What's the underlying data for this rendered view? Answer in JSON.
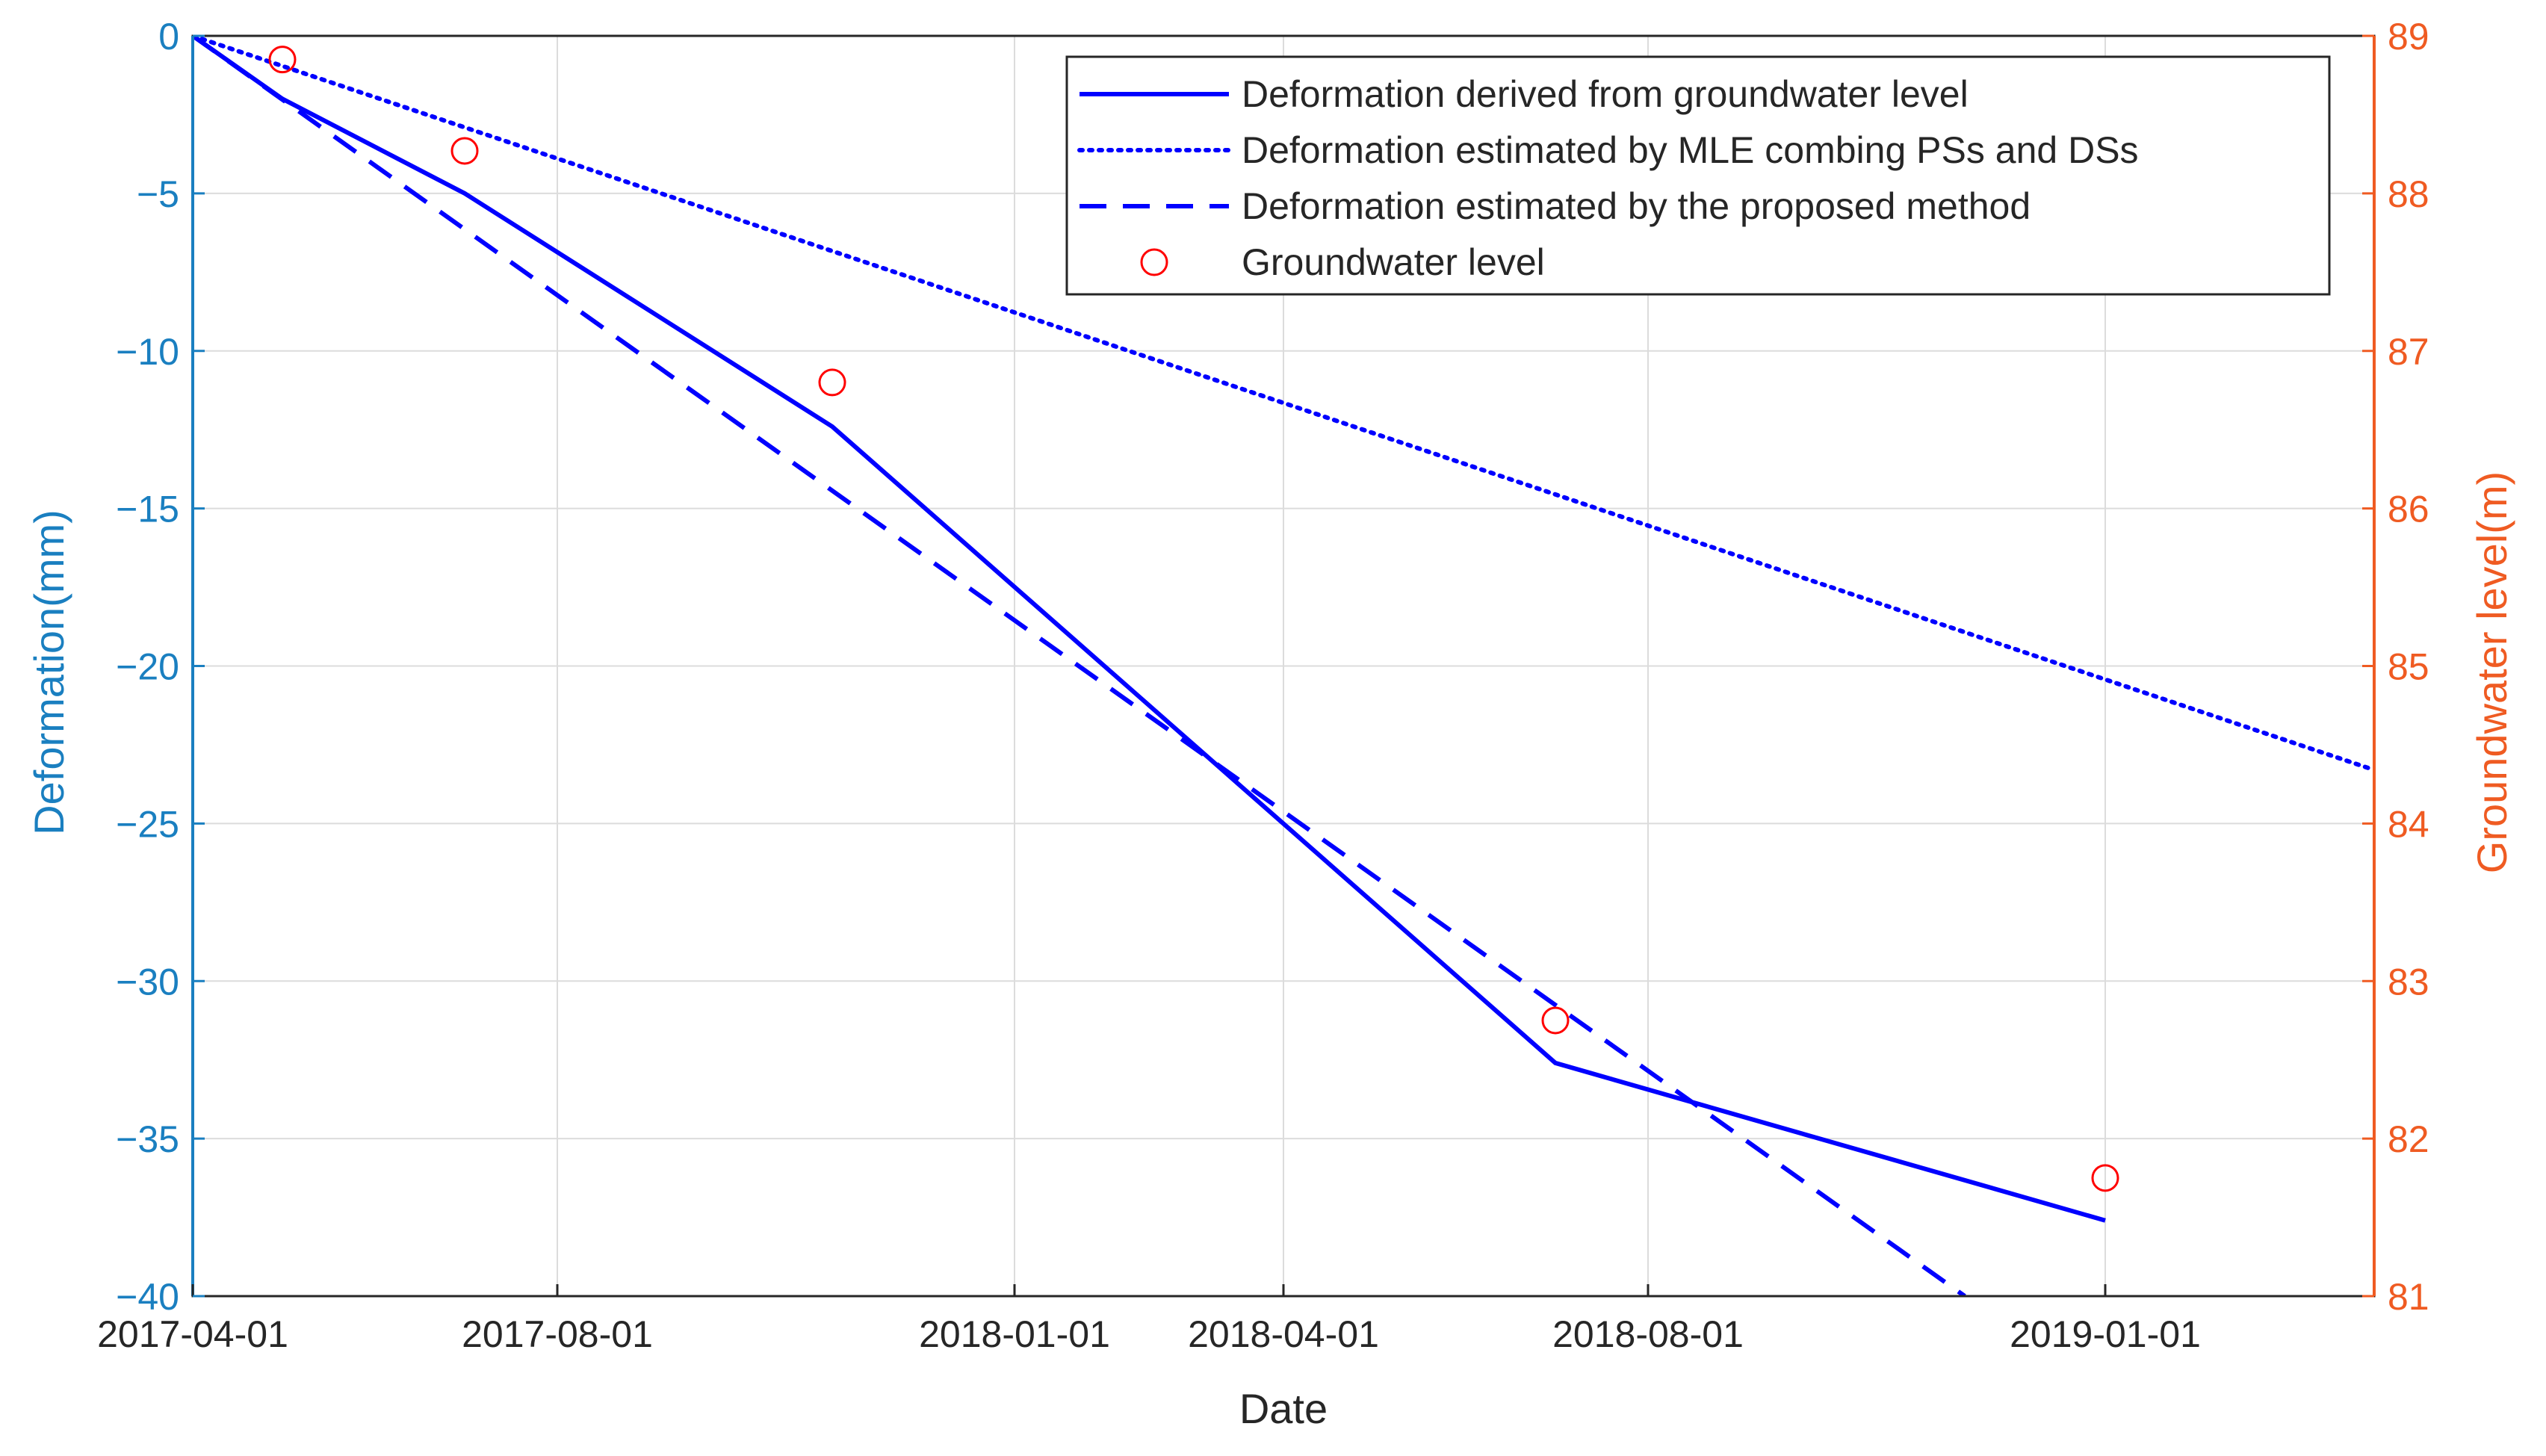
{
  "chart_data": {
    "type": "line",
    "xlabel": "Date",
    "ylabel": "Deformation(mm)",
    "y2label": "Groundwater level(m)",
    "xlim": [
      "2017-04-01",
      "2019-04-01"
    ],
    "ylim": [
      -40,
      0
    ],
    "y2lim": [
      81,
      89
    ],
    "x_ticks": [
      "2017-04-01",
      "2017-08-01",
      "2018-01-01",
      "2018-04-01",
      "2018-08-01",
      "2019-01-01"
    ],
    "y_ticks": [
      0,
      -5,
      -10,
      -15,
      -20,
      -25,
      -30,
      -35,
      -40
    ],
    "y_tick_labels": [
      "0",
      "−5",
      "−10",
      "−15",
      "−20",
      "−25",
      "−30",
      "−35",
      "−40"
    ],
    "y2_ticks": [
      "81",
      "82",
      "83",
      "84",
      "85",
      "86",
      "87",
      "88",
      "89"
    ],
    "grid": true,
    "legend_position": "top-right",
    "series": [
      {
        "name": "Deformation derived from groundwater level",
        "axis": "left",
        "style": "solid",
        "color": "#0000ff",
        "x": [
          "2017-04-01",
          "2017-05-01",
          "2017-07-01",
          "2017-11-01",
          "2018-07-01",
          "2019-01-01"
        ],
        "y": [
          0,
          -2.0,
          -5.0,
          -12.4,
          -32.6,
          -37.6
        ]
      },
      {
        "name": "Deformation estimated by MLE combing PSs and DSs",
        "axis": "left",
        "style": "dotted",
        "color": "#0000ff",
        "x": [
          "2017-04-01",
          "2019-04-01"
        ],
        "y": [
          0,
          -23.3
        ]
      },
      {
        "name": "Deformation estimated by the proposed method",
        "axis": "left",
        "style": "dashed",
        "color": "#0000ff",
        "x": [
          "2017-04-01",
          "2018-11-15"
        ],
        "y": [
          0,
          -40
        ]
      },
      {
        "name": "Groundwater level",
        "axis": "right",
        "style": "marker-circle",
        "color": "#ff0000",
        "x": [
          "2017-05-01",
          "2017-07-01",
          "2017-11-01",
          "2018-07-01",
          "2019-01-01"
        ],
        "y": [
          88.85,
          88.27,
          86.8,
          82.75,
          81.75
        ]
      }
    ]
  }
}
